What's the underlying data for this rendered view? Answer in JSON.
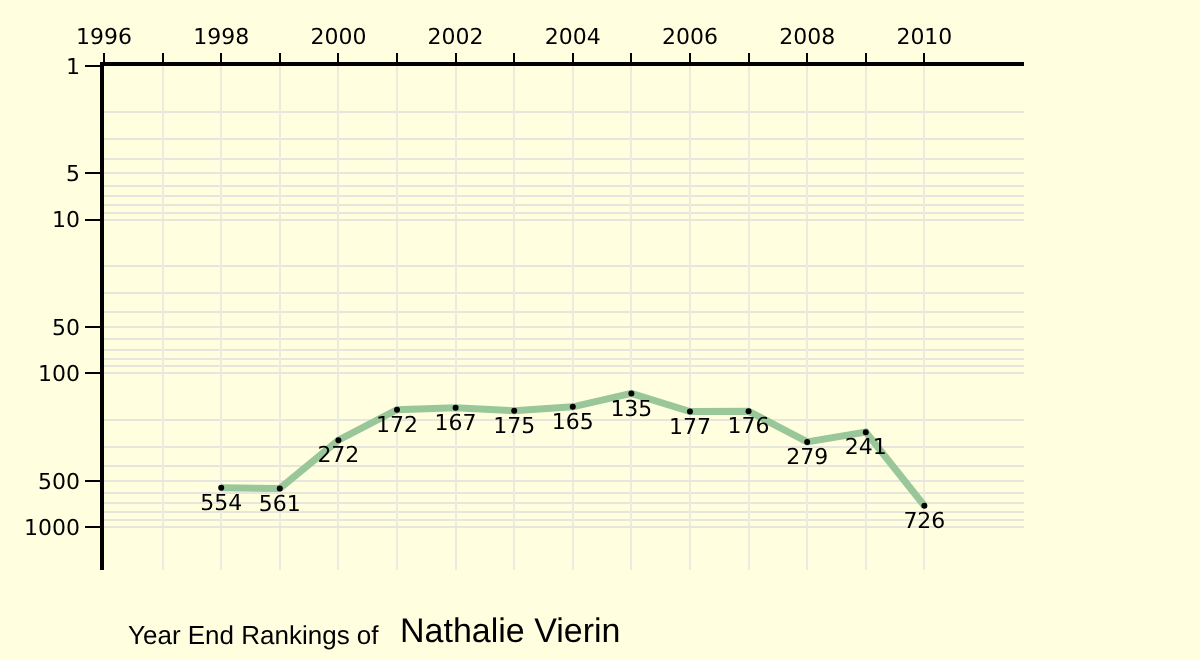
{
  "chart_data": {
    "type": "line",
    "title": "Year End Rankings of",
    "subtitle": "Nathalie Vierin",
    "x": [
      1998,
      1999,
      2000,
      2001,
      2002,
      2003,
      2004,
      2005,
      2006,
      2007,
      2008,
      2009,
      2010
    ],
    "series": [
      {
        "color": "#99c799",
        "values": [
          554,
          561,
          272,
          172,
          167,
          175,
          165,
          135,
          177,
          176,
          279,
          241,
          726
        ]
      }
    ],
    "data_labels": true,
    "marker": "circle",
    "line_style": "solid",
    "log": "y",
    "grid": true,
    "xlim": [
      1996,
      2011.7
    ],
    "xticks": [
      1996,
      {
        "value": 1997,
        "label": null
      },
      1998,
      {
        "value": 1999,
        "label": null
      },
      2000,
      {
        "value": 2001,
        "label": null
      },
      2002,
      {
        "value": 2003,
        "label": null
      },
      2004,
      {
        "value": 2005,
        "label": null
      },
      2006,
      {
        "value": 2007,
        "label": null
      },
      2008,
      {
        "value": 2009,
        "label": null
      },
      2010
    ],
    "ylim": [
      1900,
      1
    ],
    "yticks": [
      1,
      5,
      10,
      50,
      100,
      500,
      1000
    ]
  }
}
